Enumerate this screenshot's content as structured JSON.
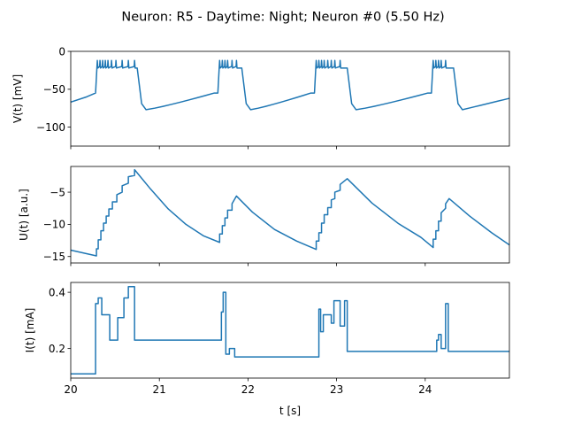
{
  "chart_data": {
    "title": "Neuron: R5 - Daytime: Night; Neuron #0 (5.50 Hz)",
    "type": "line",
    "color": "#1f77b4",
    "xlabel": "t [s]",
    "xlim": [
      20,
      24.95
    ],
    "xticks": [
      20,
      21,
      22,
      23,
      24
    ],
    "xtick_labels": [
      "20",
      "21",
      "22",
      "23",
      "24"
    ],
    "panels": [
      {
        "ylabel": "V(t) [mV]",
        "ylim": [
          -125,
          0
        ],
        "yticks": [
          0,
          -50,
          -100
        ],
        "ytick_labels": [
          "0",
          "−50",
          "−100"
        ],
        "type": "spikes",
        "bursts": [
          {
            "spikes": [
              20.3,
              20.33,
              20.36,
              20.39,
              20.42,
              20.46,
              20.51,
              20.58,
              20.65,
              20.72
            ],
            "end": 20.75
          },
          {
            "spikes": [
              21.68,
              21.71,
              21.74,
              21.77,
              21.82,
              21.87
            ],
            "end": 21.93
          },
          {
            "spikes": [
              22.77,
              22.8,
              22.83,
              22.86,
              22.9,
              22.94,
              22.98,
              23.04
            ],
            "end": 23.12
          },
          {
            "spikes": [
              24.09,
              24.12,
              24.15,
              24.18,
              24.23
            ],
            "end": 24.32
          }
        ],
        "baseline": {
          "start_value": -67,
          "trough": -77,
          "pre_burst": -55,
          "plateau": -20,
          "spike_peak": -12,
          "end_value": -62
        }
      },
      {
        "ylabel": "U(t) [a.u.]",
        "ylim": [
          -16,
          -1
        ],
        "yticks": [
          -5,
          -10,
          -15
        ],
        "ytick_labels": [
          "−5",
          "−10",
          "−15"
        ],
        "type": "line",
        "points": [
          [
            20.0,
            -14.0
          ],
          [
            20.29,
            -14.9
          ],
          [
            20.29,
            -13.8
          ],
          [
            20.31,
            -13.8
          ],
          [
            20.31,
            -12.4
          ],
          [
            20.34,
            -12.4
          ],
          [
            20.34,
            -11.0
          ],
          [
            20.37,
            -11.0
          ],
          [
            20.37,
            -9.8
          ],
          [
            20.4,
            -9.8
          ],
          [
            20.4,
            -8.7
          ],
          [
            20.43,
            -8.7
          ],
          [
            20.43,
            -7.6
          ],
          [
            20.47,
            -7.6
          ],
          [
            20.47,
            -6.5
          ],
          [
            20.52,
            -6.5
          ],
          [
            20.52,
            -5.4
          ],
          [
            20.58,
            -5.0
          ],
          [
            20.58,
            -4.0
          ],
          [
            20.65,
            -3.6
          ],
          [
            20.65,
            -2.6
          ],
          [
            20.72,
            -2.4
          ],
          [
            20.72,
            -1.5
          ],
          [
            20.9,
            -4.5
          ],
          [
            21.1,
            -7.6
          ],
          [
            21.3,
            -10.0
          ],
          [
            21.5,
            -11.8
          ],
          [
            21.68,
            -12.8
          ],
          [
            21.68,
            -11.5
          ],
          [
            21.71,
            -11.5
          ],
          [
            21.71,
            -10.2
          ],
          [
            21.74,
            -10.2
          ],
          [
            21.74,
            -9.0
          ],
          [
            21.77,
            -9.0
          ],
          [
            21.77,
            -7.8
          ],
          [
            21.82,
            -7.8
          ],
          [
            21.82,
            -6.8
          ],
          [
            21.87,
            -5.6
          ],
          [
            22.05,
            -8.1
          ],
          [
            22.3,
            -10.8
          ],
          [
            22.55,
            -12.6
          ],
          [
            22.77,
            -13.9
          ],
          [
            22.77,
            -12.6
          ],
          [
            22.8,
            -12.6
          ],
          [
            22.8,
            -11.3
          ],
          [
            22.83,
            -11.3
          ],
          [
            22.83,
            -9.8
          ],
          [
            22.86,
            -9.8
          ],
          [
            22.86,
            -8.5
          ],
          [
            22.9,
            -8.5
          ],
          [
            22.9,
            -7.4
          ],
          [
            22.94,
            -7.4
          ],
          [
            22.94,
            -6.2
          ],
          [
            22.98,
            -6.0
          ],
          [
            22.98,
            -5.0
          ],
          [
            23.04,
            -4.7
          ],
          [
            23.04,
            -3.8
          ],
          [
            23.12,
            -2.9
          ],
          [
            23.4,
            -6.7
          ],
          [
            23.7,
            -9.9
          ],
          [
            23.95,
            -12.0
          ],
          [
            24.09,
            -13.6
          ],
          [
            24.09,
            -12.3
          ],
          [
            24.12,
            -12.3
          ],
          [
            24.12,
            -11.0
          ],
          [
            24.15,
            -11.0
          ],
          [
            24.15,
            -9.5
          ],
          [
            24.18,
            -9.5
          ],
          [
            24.18,
            -8.2
          ],
          [
            24.23,
            -7.5
          ],
          [
            24.23,
            -6.8
          ],
          [
            24.27,
            -6.0
          ],
          [
            24.5,
            -8.7
          ],
          [
            24.75,
            -11.3
          ],
          [
            24.95,
            -13.2
          ]
        ]
      },
      {
        "ylabel": "I(t) [mA]",
        "ylim": [
          0.095,
          0.435
        ],
        "yticks": [
          0.4,
          0.2
        ],
        "ytick_labels": [
          "0.4",
          "0.2"
        ],
        "type": "step",
        "points": [
          [
            20.0,
            0.11
          ],
          [
            20.28,
            0.11
          ],
          [
            20.28,
            0.36
          ],
          [
            20.31,
            0.36
          ],
          [
            20.31,
            0.38
          ],
          [
            20.35,
            0.38
          ],
          [
            20.35,
            0.32
          ],
          [
            20.44,
            0.32
          ],
          [
            20.44,
            0.23
          ],
          [
            20.53,
            0.23
          ],
          [
            20.53,
            0.31
          ],
          [
            20.6,
            0.31
          ],
          [
            20.6,
            0.38
          ],
          [
            20.65,
            0.38
          ],
          [
            20.65,
            0.42
          ],
          [
            20.72,
            0.42
          ],
          [
            20.72,
            0.23
          ],
          [
            21.7,
            0.23
          ],
          [
            21.7,
            0.33
          ],
          [
            21.72,
            0.33
          ],
          [
            21.72,
            0.4
          ],
          [
            21.75,
            0.4
          ],
          [
            21.75,
            0.18
          ],
          [
            21.79,
            0.18
          ],
          [
            21.79,
            0.2
          ],
          [
            21.85,
            0.2
          ],
          [
            21.85,
            0.17
          ],
          [
            22.8,
            0.17
          ],
          [
            22.8,
            0.34
          ],
          [
            22.82,
            0.34
          ],
          [
            22.82,
            0.26
          ],
          [
            22.85,
            0.26
          ],
          [
            22.85,
            0.32
          ],
          [
            22.94,
            0.32
          ],
          [
            22.94,
            0.29
          ],
          [
            22.97,
            0.29
          ],
          [
            22.97,
            0.37
          ],
          [
            23.04,
            0.37
          ],
          [
            23.04,
            0.28
          ],
          [
            23.09,
            0.28
          ],
          [
            23.09,
            0.37
          ],
          [
            23.12,
            0.37
          ],
          [
            23.12,
            0.19
          ],
          [
            24.13,
            0.19
          ],
          [
            24.13,
            0.23
          ],
          [
            24.15,
            0.23
          ],
          [
            24.15,
            0.25
          ],
          [
            24.18,
            0.25
          ],
          [
            24.18,
            0.2
          ],
          [
            24.23,
            0.2
          ],
          [
            24.23,
            0.36
          ],
          [
            24.26,
            0.36
          ],
          [
            24.26,
            0.19
          ],
          [
            24.95,
            0.19
          ]
        ]
      }
    ]
  }
}
